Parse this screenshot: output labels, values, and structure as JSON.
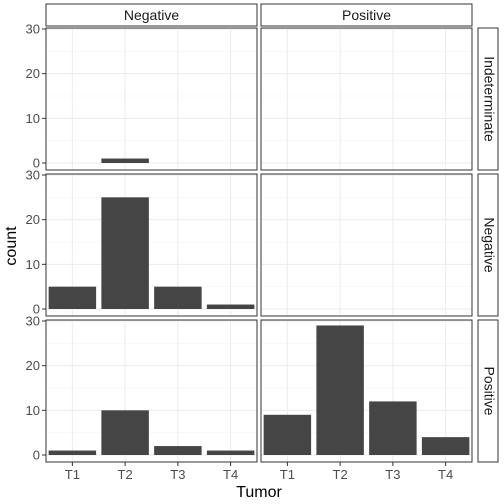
{
  "chart_data": {
    "type": "bar",
    "xlabel": "Tumor",
    "ylabel": "count",
    "categories": [
      "T1",
      "T2",
      "T3",
      "T4"
    ],
    "ylim": [
      0,
      30
    ],
    "yticks": [
      0,
      10,
      20,
      30
    ],
    "grid": true,
    "bar_color": "#454545",
    "strip_color": "#ffffff",
    "grid_color": "#ebebeb",
    "col_facets": [
      "Negative",
      "Positive"
    ],
    "row_facets": [
      "Indeterminate",
      "Negative",
      "Positive"
    ],
    "panels": [
      {
        "row": "Indeterminate",
        "col": "Negative",
        "values": [
          0,
          1,
          0,
          0
        ]
      },
      {
        "row": "Indeterminate",
        "col": "Positive",
        "values": [
          0,
          0,
          0,
          0
        ]
      },
      {
        "row": "Negative",
        "col": "Negative",
        "values": [
          5,
          25,
          5,
          1
        ]
      },
      {
        "row": "Negative",
        "col": "Positive",
        "values": [
          0,
          0,
          0,
          0
        ]
      },
      {
        "row": "Positive",
        "col": "Negative",
        "values": [
          1,
          10,
          2,
          1
        ]
      },
      {
        "row": "Positive",
        "col": "Positive",
        "values": [
          9,
          29,
          12,
          4
        ]
      }
    ]
  }
}
